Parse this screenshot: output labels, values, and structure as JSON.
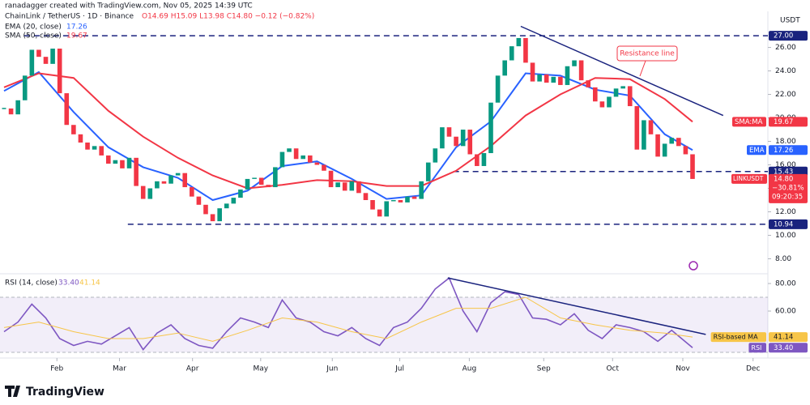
{
  "header": {
    "attribution": "ranadagger created with TradingView.com, Nov 05, 2025 14:39 UTC",
    "brand": "TradingView"
  },
  "chart_data": {
    "type": "candlestick",
    "title": "ChainLink / TetherUS · 1D · Binance",
    "ohlc_text": "O14.69 H15.09 L13.98 C14.80 −0.12 (−0.82%)",
    "y_unit": "USDT",
    "xlim": [
      0,
      99
    ],
    "xticks": [
      {
        "value": 7.6,
        "label": "Feb"
      },
      {
        "value": 16.6,
        "label": "Mar"
      },
      {
        "value": 27.1,
        "label": "Apr"
      },
      {
        "value": 36.9,
        "label": "May"
      },
      {
        "value": 47.2,
        "label": "Jun"
      },
      {
        "value": 56.9,
        "label": "Jul"
      },
      {
        "value": 66.9,
        "label": "Aug"
      },
      {
        "value": 77.6,
        "label": "Sep"
      },
      {
        "value": 87.5,
        "label": "Oct"
      },
      {
        "value": 97.6,
        "label": "Nov"
      },
      {
        "value": 107.7,
        "label": "Dec"
      }
    ],
    "ylim": [
      6.93,
      28.66
    ],
    "yticks": [
      {
        "value": 8,
        "label": "8.00"
      },
      {
        "value": 10,
        "label": "10.00"
      },
      {
        "value": 12,
        "label": "12.00"
      },
      {
        "value": 14,
        "label": "14.00"
      },
      {
        "value": 16,
        "label": "16.00"
      },
      {
        "value": 18,
        "label": "18.00"
      },
      {
        "value": 20,
        "label": "20.00"
      },
      {
        "value": 22,
        "label": "22.00"
      },
      {
        "value": 24,
        "label": "24.00"
      },
      {
        "value": 26,
        "label": "26.00"
      }
    ],
    "up_color": "#089981",
    "down_color": "#f23645",
    "closes": [
      20.8,
      20.3,
      21.5,
      23.6,
      25.8,
      25.2,
      24.6,
      25.9,
      22.1,
      19.4,
      18.6,
      17.9,
      17.3,
      17.6,
      16.8,
      16.1,
      16.4,
      15.7,
      16.6,
      14.2,
      13.1,
      14.0,
      14.6,
      14.4,
      15.1,
      15.3,
      14.1,
      13.3,
      12.6,
      11.8,
      11.2,
      12.3,
      12.7,
      13.2,
      13.9,
      14.8,
      14.9,
      14.3,
      14.1,
      15.8,
      17.1,
      17.4,
      16.5,
      16.8,
      16.2,
      16.0,
      15.5,
      14.1,
      14.5,
      13.8,
      14.6,
      13.6,
      13.0,
      12.2,
      11.6,
      12.9,
      13.0,
      12.8,
      13.3,
      13.1,
      14.6,
      16.2,
      17.4,
      19.2,
      18.4,
      17.6,
      19.0,
      16.9,
      15.9,
      17.0,
      21.3,
      23.6,
      24.9,
      26.1,
      26.8,
      24.7,
      23.1,
      23.7,
      23.0,
      23.5,
      22.8,
      24.4,
      24.9,
      23.2,
      22.6,
      21.4,
      20.9,
      21.8,
      22.5,
      22.7,
      21.0,
      17.3,
      19.8,
      18.6,
      16.7,
      17.8,
      18.3,
      17.6,
      16.9,
      14.8
    ],
    "series": [
      {
        "name": "EMA (20, close)",
        "axis_label": "EMA",
        "color": "#2962ff",
        "last": 17.26,
        "x": [
          0,
          5,
          10,
          15,
          20,
          25,
          30,
          35,
          40,
          45,
          50,
          55,
          60,
          65,
          70,
          75,
          80,
          85,
          90,
          95,
          99
        ],
        "values": [
          22.3,
          23.9,
          20.5,
          17.5,
          15.8,
          14.9,
          13.0,
          13.8,
          15.9,
          16.3,
          14.8,
          13.1,
          13.4,
          17.5,
          19.7,
          23.8,
          23.6,
          22.4,
          21.9,
          18.6,
          17.26
        ]
      },
      {
        "name": "SMA (50, close)",
        "axis_label": "SMA:MA",
        "color": "#f23645",
        "last": 19.67,
        "x": [
          0,
          5,
          10,
          15,
          20,
          25,
          30,
          35,
          40,
          45,
          50,
          55,
          60,
          65,
          70,
          75,
          80,
          85,
          90,
          95,
          99
        ],
        "values": [
          22.6,
          23.8,
          23.4,
          20.6,
          18.4,
          16.6,
          15.1,
          14.0,
          14.3,
          14.7,
          14.6,
          14.2,
          14.2,
          15.5,
          17.6,
          20.2,
          22.0,
          23.4,
          23.3,
          21.6,
          19.67
        ]
      }
    ],
    "level_color": "#1a237e",
    "levels": [
      {
        "value": 27,
        "label": "27.00",
        "from": 2.9
      },
      {
        "value": 15.43,
        "from": 64.6
      },
      {
        "value": 10.94,
        "from": 17.8
      }
    ],
    "trendline": {
      "x": [
        74.3,
        103.4
      ],
      "y": [
        27.8,
        20.2
      ],
      "color": "#1a237e"
    },
    "annotation": "Resistance line",
    "last_price": {
      "symbol": "LINKUSDT",
      "price": {
        "value": 14.8,
        "label": "14.80"
      },
      "change": "−30.81%",
      "countdown": "09:20:35"
    },
    "rsi": {
      "title": "RSI (14, close)",
      "ylim": [
        25.9,
        85.9
      ],
      "yticks": [
        {
          "value": 60,
          "label": "60.00"
        },
        {
          "value": 80,
          "label": "80.00"
        }
      ],
      "band": [
        30,
        70
      ],
      "trendline": {
        "x": [
          63.8,
          100.9
        ],
        "y": [
          84.1,
          43
        ]
      },
      "series": [
        {
          "name": "RSI",
          "color": "#7e57c2",
          "last": {
            "value": 33.4,
            "label": "33.40"
          },
          "x": [
            0,
            2,
            4,
            6,
            8,
            10,
            12,
            14,
            16,
            18,
            20,
            22,
            24,
            26,
            28,
            30,
            32,
            34,
            36,
            38,
            40,
            42,
            44,
            46,
            48,
            50,
            52,
            54,
            56,
            58,
            60,
            62,
            64,
            66,
            68,
            70,
            72,
            74,
            76,
            78,
            80,
            82,
            84,
            86,
            88,
            90,
            92,
            94,
            96,
            99
          ],
          "values": [
            45,
            52,
            65,
            55,
            40,
            35,
            38,
            36,
            42,
            48,
            32,
            44,
            50,
            40,
            35,
            33,
            45,
            55,
            52,
            48,
            68,
            55,
            52,
            45,
            42,
            48,
            40,
            35,
            48,
            52,
            62,
            76,
            84,
            60,
            45,
            66,
            74,
            72,
            55,
            54,
            50,
            58,
            46,
            40,
            50,
            48,
            45,
            38,
            46,
            33.4
          ]
        },
        {
          "name": "RSI-based MA",
          "color": "#f7c548",
          "last": 41.14,
          "x": [
            0,
            5,
            10,
            15,
            20,
            25,
            30,
            35,
            40,
            45,
            50,
            55,
            60,
            65,
            70,
            75,
            80,
            85,
            90,
            95,
            99
          ],
          "values": [
            48,
            52,
            45,
            40,
            40,
            44,
            38,
            46,
            55,
            52,
            45,
            40,
            52,
            62,
            62,
            70,
            55,
            50,
            46,
            44,
            41.14
          ]
        }
      ]
    }
  }
}
